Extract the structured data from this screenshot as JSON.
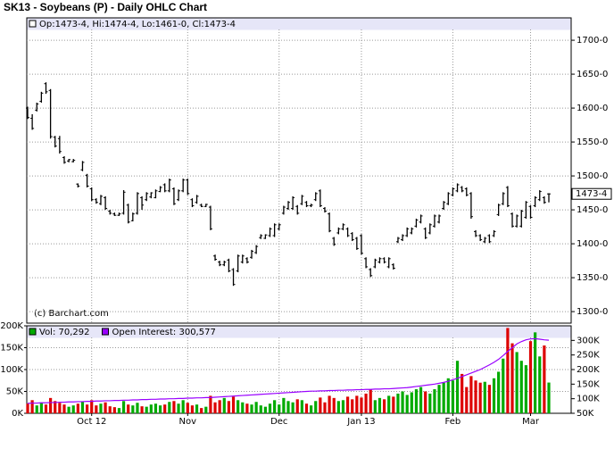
{
  "chart_data": [
    {
      "type": "ohlc",
      "title": "SK13 - Soybeans (P) - Daily OHLC Chart",
      "ohlc_header": "Op:1473-4, Hi:1474-4, Lo:1461-0, Cl:1473-4",
      "watermark": "(c) Barchart.com",
      "last_label": {
        "value": 1473.5,
        "label": "1473-4"
      },
      "color": "#000000",
      "open": [
        1600,
        1585,
        1597,
        1610,
        1636,
        1626,
        1557,
        1555,
        1527,
        1522,
        1521,
        1488,
        1509,
        1501,
        1481,
        1465,
        1459,
        1468,
        1448,
        1444,
        1442,
        1445,
        1457,
        1434,
        1445,
        1468,
        1465,
        1469,
        1468,
        1477,
        1487,
        1478,
        1481,
        1465,
        1478,
        1494,
        1465,
        1461,
        1457,
        1455,
        1454,
        1382,
        1373,
        1369,
        1376,
        1362,
        1360,
        1373,
        1378,
        1380,
        1387,
        1409,
        1408,
        1412,
        1412,
        1422,
        1445,
        1452,
        1452,
        1455,
        1459,
        1461,
        1456,
        1465,
        1478,
        1452,
        1444,
        1408,
        1416,
        1422,
        1422,
        1415,
        1408,
        1412,
        1378,
        1362,
        1366,
        1373,
        1378,
        1366,
        1369,
        1403,
        1406,
        1412,
        1416,
        1426,
        1432,
        1422,
        1416,
        1426,
        1432,
        1452,
        1459,
        1472,
        1478,
        1483,
        1481,
        1474,
        1418,
        1412,
        1403,
        1412,
        1412,
        1443,
        1459,
        1483,
        1444,
        1426,
        1426,
        1439,
        1455,
        1456,
        1465,
        1468,
        1473.5
      ],
      "high": [
        1602,
        1591,
        1608,
        1624,
        1638,
        1628,
        1559,
        1559,
        1529,
        1525,
        1525,
        1489,
        1522,
        1503,
        1483,
        1467,
        1472,
        1470,
        1450,
        1446,
        1446,
        1479,
        1459,
        1446,
        1476,
        1470,
        1476,
        1476,
        1480,
        1485,
        1489,
        1496,
        1483,
        1480,
        1496,
        1496,
        1467,
        1472,
        1459,
        1459,
        1456,
        1384,
        1375,
        1375,
        1378,
        1364,
        1384,
        1384,
        1380,
        1391,
        1398,
        1414,
        1414,
        1424,
        1430,
        1430,
        1456,
        1463,
        1470,
        1457,
        1472,
        1463,
        1459,
        1476,
        1480,
        1454,
        1446,
        1410,
        1424,
        1430,
        1424,
        1417,
        1410,
        1414,
        1380,
        1364,
        1378,
        1380,
        1380,
        1380,
        1371,
        1410,
        1414,
        1424,
        1424,
        1437,
        1443,
        1424,
        1430,
        1443,
        1443,
        1463,
        1476,
        1483,
        1489,
        1485,
        1483,
        1476,
        1420,
        1414,
        1410,
        1414,
        1420,
        1459,
        1476,
        1485,
        1446,
        1443,
        1450,
        1463,
        1457,
        1470,
        1479,
        1470,
        1474.5
      ],
      "low": [
        1584,
        1568,
        1595,
        1608,
        1621,
        1555,
        1542,
        1533,
        1518,
        1520,
        1520,
        1483,
        1507,
        1483,
        1463,
        1459,
        1457,
        1450,
        1443,
        1441,
        1441,
        1443,
        1430,
        1433,
        1443,
        1450,
        1463,
        1467,
        1467,
        1476,
        1476,
        1476,
        1457,
        1463,
        1476,
        1472,
        1454,
        1459,
        1454,
        1454,
        1420,
        1375,
        1367,
        1367,
        1358,
        1338,
        1358,
        1371,
        1371,
        1378,
        1385,
        1407,
        1407,
        1410,
        1410,
        1420,
        1443,
        1450,
        1450,
        1443,
        1457,
        1454,
        1454,
        1463,
        1454,
        1446,
        1417,
        1397,
        1414,
        1420,
        1410,
        1404,
        1391,
        1384,
        1364,
        1351,
        1364,
        1371,
        1371,
        1364,
        1362,
        1401,
        1404,
        1410,
        1414,
        1424,
        1430,
        1407,
        1414,
        1424,
        1430,
        1450,
        1457,
        1470,
        1476,
        1476,
        1470,
        1437,
        1410,
        1404,
        1401,
        1401,
        1410,
        1441,
        1457,
        1454,
        1424,
        1424,
        1424,
        1437,
        1437,
        1454,
        1463,
        1459,
        1461
      ],
      "close": [
        1586,
        1570,
        1606,
        1622,
        1624,
        1558,
        1544,
        1536,
        1520,
        1524,
        1523,
        1485,
        1520,
        1485,
        1465,
        1461,
        1470,
        1452,
        1445,
        1442,
        1444,
        1476,
        1432,
        1444,
        1474,
        1457,
        1474,
        1475,
        1478,
        1483,
        1478,
        1494,
        1459,
        1478,
        1494,
        1474,
        1456,
        1470,
        1455,
        1458,
        1422,
        1377,
        1369,
        1373,
        1360,
        1340,
        1382,
        1382,
        1373,
        1389,
        1396,
        1412,
        1413,
        1422,
        1428,
        1428,
        1454,
        1461,
        1468,
        1445,
        1470,
        1456,
        1457,
        1474,
        1456,
        1448,
        1419,
        1399,
        1422,
        1428,
        1412,
        1406,
        1393,
        1386,
        1366,
        1353,
        1376,
        1378,
        1373,
        1378,
        1364,
        1408,
        1412,
        1422,
        1422,
        1435,
        1441,
        1409,
        1428,
        1441,
        1441,
        1461,
        1474,
        1481,
        1487,
        1478,
        1472,
        1440,
        1412,
        1406,
        1408,
        1403,
        1418,
        1457,
        1474,
        1456,
        1426,
        1441,
        1448,
        1461,
        1439,
        1468,
        1477,
        1461,
        1473.5
      ],
      "ylim": [
        1283,
        1733
      ],
      "yticks": [
        {
          "value": 1300,
          "label": "1300-0"
        },
        {
          "value": 1350,
          "label": "1350-0"
        },
        {
          "value": 1400,
          "label": "1400-0"
        },
        {
          "value": 1450,
          "label": "1450-0"
        },
        {
          "value": 1500,
          "label": "1500-0"
        },
        {
          "value": 1550,
          "label": "1550-0"
        },
        {
          "value": 1600,
          "label": "1600-0"
        },
        {
          "value": 1650,
          "label": "1650-0"
        },
        {
          "value": 1700,
          "label": "1700-0"
        }
      ],
      "grid": true
    },
    {
      "type": "bar",
      "categories": [
        null,
        null,
        null,
        null,
        null,
        null,
        null,
        null,
        null,
        null,
        null,
        null,
        null,
        null,
        "Oct 12",
        null,
        null,
        null,
        null,
        null,
        null,
        null,
        null,
        null,
        null,
        null,
        null,
        null,
        null,
        null,
        null,
        null,
        null,
        null,
        null,
        "Nov",
        null,
        null,
        null,
        null,
        null,
        null,
        null,
        null,
        null,
        null,
        null,
        null,
        null,
        null,
        null,
        null,
        null,
        null,
        null,
        "Dec",
        null,
        null,
        null,
        null,
        null,
        null,
        null,
        null,
        null,
        null,
        null,
        null,
        null,
        null,
        null,
        null,
        null,
        "Jan 13",
        null,
        null,
        null,
        null,
        null,
        null,
        null,
        null,
        null,
        null,
        null,
        null,
        null,
        null,
        null,
        null,
        null,
        null,
        null,
        "Feb",
        null,
        null,
        null,
        null,
        null,
        null,
        null,
        null,
        null,
        null,
        null,
        null,
        null,
        null,
        null,
        null,
        "Mar",
        null,
        null,
        null,
        null
      ],
      "series": [
        {
          "name": "Vol: 70,292",
          "color": "#00aa00",
          "down_color": "#dd0000",
          "values": [
            22000,
            30000,
            18000,
            25000,
            20000,
            35000,
            28000,
            24000,
            20000,
            15000,
            18000,
            22000,
            26000,
            20000,
            30000,
            18000,
            22000,
            25000,
            16000,
            14000,
            12000,
            28000,
            20000,
            18000,
            24000,
            16000,
            15000,
            20000,
            22000,
            18000,
            20000,
            26000,
            28000,
            22000,
            30000,
            24000,
            18000,
            20000,
            12000,
            15000,
            40000,
            25000,
            30000,
            35000,
            28000,
            38000,
            30000,
            25000,
            22000,
            20000,
            26000,
            18000,
            15000,
            22000,
            30000,
            20000,
            35000,
            28000,
            25000,
            32000,
            30000,
            22000,
            18000,
            28000,
            36000,
            25000,
            40000,
            35000,
            28000,
            30000,
            38000,
            32000,
            40000,
            36000,
            45000,
            55000,
            30000,
            35000,
            32000,
            40000,
            38000,
            45000,
            50000,
            42000,
            48000,
            55000,
            60000,
            50000,
            45000,
            55000,
            65000,
            70000,
            80000,
            75000,
            120000,
            90000,
            60000,
            85000,
            75000,
            70000,
            72000,
            65000,
            80000,
            95000,
            125000,
            195000,
            160000,
            140000,
            120000,
            110000,
            165000,
            185000,
            130000,
            155000,
            70292
          ]
        },
        {
          "name": "Open Interest: 300,577",
          "color": "#9900ff",
          "axis": "y2",
          "values": [
            84000,
            85000,
            85000,
            86000,
            86000,
            87000,
            87000,
            88000,
            88000,
            89000,
            89000,
            90000,
            90000,
            91000,
            91000,
            92000,
            92000,
            93000,
            93000,
            94000,
            94000,
            95000,
            95000,
            96000,
            96000,
            97000,
            97000,
            98000,
            98000,
            99000,
            99000,
            100000,
            100000,
            101000,
            101000,
            102000,
            102000,
            103000,
            103000,
            104000,
            104000,
            105000,
            106000,
            107000,
            108000,
            109000,
            110000,
            111000,
            112000,
            113000,
            114000,
            115000,
            116000,
            117000,
            118000,
            119000,
            120000,
            121000,
            122000,
            123000,
            124000,
            125000,
            126000,
            126000,
            127000,
            127000,
            128000,
            128000,
            129000,
            129000,
            130000,
            130000,
            131000,
            131000,
            132000,
            132000,
            133000,
            133000,
            134000,
            134000,
            135000,
            136000,
            137000,
            138000,
            140000,
            142000,
            144000,
            146000,
            148000,
            150000,
            153000,
            156000,
            160000,
            165000,
            170000,
            176000,
            182000,
            188000,
            194000,
            200000,
            208000,
            216000,
            225000,
            235000,
            248000,
            262000,
            275000,
            288000,
            296000,
            302000,
            305000,
            306000,
            304000,
            302000,
            300577
          ]
        }
      ],
      "ylim": [
        0,
        200000
      ],
      "yticks": [
        {
          "value": 0,
          "label": "0K"
        },
        {
          "value": 50000,
          "label": "50K"
        },
        {
          "value": 100000,
          "label": "100K"
        },
        {
          "value": 150000,
          "label": "150K"
        },
        {
          "value": 200000,
          "label": "200K"
        }
      ],
      "y2lim": [
        50000,
        350000
      ],
      "y2ticks": [
        {
          "value": 50000,
          "label": "50K"
        },
        {
          "value": 100000,
          "label": "100K"
        },
        {
          "value": 150000,
          "label": "150K"
        },
        {
          "value": 200000,
          "label": "200K"
        },
        {
          "value": 250000,
          "label": "250K"
        },
        {
          "value": 300000,
          "label": "300K"
        }
      ],
      "grid": true
    }
  ]
}
